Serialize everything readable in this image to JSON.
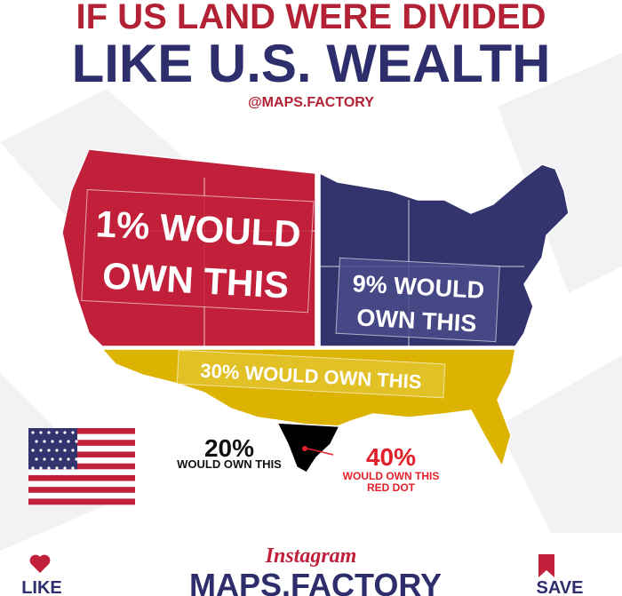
{
  "header": {
    "title_line1": "IF US LAND WERE DIVIDED",
    "title_line2": "LIKE U.S. WEALTH",
    "handle": "@MAPS.FACTORY"
  },
  "regions": [
    {
      "label_lines": [
        "1% WOULD",
        "OWN THIS"
      ]
    },
    {
      "label_lines": [
        "9% WOULD",
        "OWN THIS"
      ]
    },
    {
      "label_lines": [
        "30% WOULD OWN THIS"
      ]
    },
    {
      "percent": "20%",
      "caption": "WOULD OWN THIS"
    },
    {
      "percent": "40%",
      "caption_lines": [
        "WOULD OWN THIS",
        "RED DOT"
      ]
    }
  ],
  "footer": {
    "platform": "Instagram",
    "account": "MAPS.FACTORY",
    "like": "LIKE",
    "save": "SAVE"
  }
}
